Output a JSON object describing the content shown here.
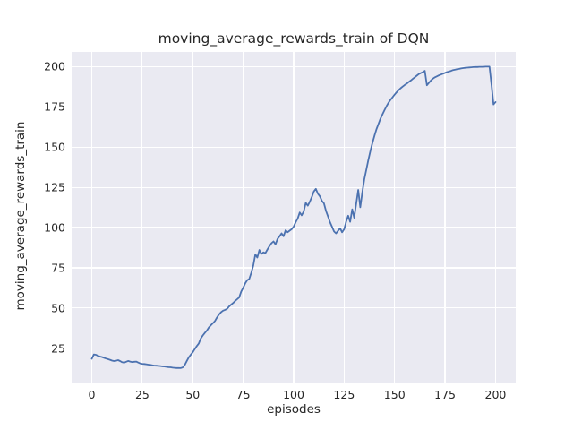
{
  "figure_title": "moving_average_rewards_train of DQN",
  "colors": {
    "figure_bg": "#ffffff",
    "axes_bg": "#eaeaf2",
    "grid": "#ffffff",
    "line": "#4c72b0",
    "text": "#262626"
  },
  "chart_data": {
    "type": "line",
    "title": "moving_average_rewards_train of DQN",
    "xlabel": "episodes",
    "ylabel": "moving_average_rewards_train",
    "xlim": [
      -10,
      210
    ],
    "ylim": [
      3.65,
      209.35
    ],
    "xticks": [
      0,
      25,
      50,
      75,
      100,
      125,
      150,
      175,
      200
    ],
    "yticks": [
      25,
      50,
      75,
      100,
      125,
      150,
      175,
      200
    ],
    "grid": true,
    "legend": false,
    "series": [
      {
        "name": "moving_average_rewards_train",
        "points": [
          [
            0,
            18.5
          ],
          [
            1,
            21.2
          ],
          [
            2,
            21.0
          ],
          [
            3,
            20.4
          ],
          [
            4,
            19.9
          ],
          [
            5,
            19.6
          ],
          [
            6,
            19.1
          ],
          [
            7,
            18.7
          ],
          [
            8,
            18.3
          ],
          [
            9,
            17.9
          ],
          [
            10,
            17.4
          ],
          [
            11,
            17.1
          ],
          [
            12,
            17.3
          ],
          [
            13,
            17.7
          ],
          [
            14,
            17.1
          ],
          [
            15,
            16.4
          ],
          [
            16,
            16.1
          ],
          [
            17,
            16.7
          ],
          [
            18,
            17.2
          ],
          [
            19,
            16.8
          ],
          [
            20,
            16.5
          ],
          [
            21,
            16.7
          ],
          [
            22,
            16.8
          ],
          [
            23,
            16.2
          ],
          [
            24,
            15.6
          ],
          [
            25,
            15.4
          ],
          [
            26,
            15.3
          ],
          [
            27,
            15.1
          ],
          [
            28,
            14.9
          ],
          [
            29,
            14.7
          ],
          [
            30,
            14.5
          ],
          [
            31,
            14.3
          ],
          [
            32,
            14.2
          ],
          [
            33,
            14.1
          ],
          [
            34,
            14.0
          ],
          [
            35,
            13.8
          ],
          [
            36,
            13.7
          ],
          [
            37,
            13.5
          ],
          [
            38,
            13.3
          ],
          [
            39,
            13.2
          ],
          [
            40,
            13.0
          ],
          [
            41,
            12.9
          ],
          [
            42,
            12.8
          ],
          [
            43,
            12.8
          ],
          [
            44,
            12.7
          ],
          [
            45,
            13.1
          ],
          [
            46,
            14.6
          ],
          [
            47,
            17.0
          ],
          [
            48,
            19.4
          ],
          [
            49,
            21.0
          ],
          [
            50,
            22.6
          ],
          [
            51,
            24.5
          ],
          [
            52,
            26.4
          ],
          [
            53,
            28.0
          ],
          [
            54,
            31.2
          ],
          [
            55,
            33.0
          ],
          [
            56,
            34.6
          ],
          [
            57,
            36.1
          ],
          [
            58,
            38.0
          ],
          [
            59,
            39.4
          ],
          [
            60,
            40.6
          ],
          [
            61,
            42.0
          ],
          [
            62,
            44.1
          ],
          [
            63,
            46.0
          ],
          [
            64,
            47.4
          ],
          [
            65,
            48.4
          ],
          [
            66,
            48.9
          ],
          [
            67,
            49.5
          ],
          [
            68,
            51.0
          ],
          [
            69,
            52.1
          ],
          [
            70,
            53.2
          ],
          [
            71,
            54.4
          ],
          [
            72,
            55.5
          ],
          [
            73,
            56.6
          ],
          [
            74,
            60.3
          ],
          [
            75,
            62.6
          ],
          [
            76,
            65.4
          ],
          [
            77,
            67.3
          ],
          [
            78,
            68.1
          ],
          [
            79,
            72.0
          ],
          [
            80,
            76.4
          ],
          [
            81,
            83.4
          ],
          [
            82,
            81.4
          ],
          [
            83,
            86.1
          ],
          [
            84,
            83.6
          ],
          [
            85,
            84.6
          ],
          [
            86,
            84.1
          ],
          [
            87,
            86.4
          ],
          [
            88,
            88.4
          ],
          [
            89,
            90.3
          ],
          [
            90,
            91.4
          ],
          [
            91,
            89.6
          ],
          [
            92,
            93.0
          ],
          [
            93,
            94.6
          ],
          [
            94,
            96.4
          ],
          [
            95,
            94.6
          ],
          [
            96,
            98.4
          ],
          [
            97,
            97.1
          ],
          [
            98,
            98.1
          ],
          [
            99,
            99.0
          ],
          [
            100,
            100.6
          ],
          [
            101,
            103.4
          ],
          [
            102,
            105.6
          ],
          [
            103,
            109.4
          ],
          [
            104,
            107.6
          ],
          [
            105,
            110.1
          ],
          [
            106,
            115.4
          ],
          [
            107,
            113.6
          ],
          [
            108,
            116.1
          ],
          [
            109,
            119.0
          ],
          [
            110,
            122.4
          ],
          [
            111,
            124.1
          ],
          [
            112,
            121.0
          ],
          [
            113,
            119.4
          ],
          [
            114,
            116.6
          ],
          [
            115,
            115.1
          ],
          [
            116,
            110.4
          ],
          [
            117,
            107.0
          ],
          [
            118,
            103.4
          ],
          [
            119,
            100.6
          ],
          [
            120,
            97.6
          ],
          [
            121,
            96.4
          ],
          [
            122,
            98.0
          ],
          [
            123,
            99.6
          ],
          [
            124,
            97.1
          ],
          [
            125,
            99.0
          ],
          [
            126,
            103.6
          ],
          [
            127,
            107.4
          ],
          [
            128,
            103.6
          ],
          [
            129,
            111.4
          ],
          [
            130,
            106.1
          ],
          [
            131,
            115.0
          ],
          [
            132,
            123.4
          ],
          [
            133,
            112.6
          ],
          [
            134,
            122.0
          ],
          [
            135,
            130.0
          ],
          [
            136,
            136.1
          ],
          [
            137,
            142.0
          ],
          [
            138,
            147.6
          ],
          [
            139,
            152.4
          ],
          [
            140,
            157.0
          ],
          [
            141,
            161.0
          ],
          [
            142,
            164.4
          ],
          [
            143,
            167.6
          ],
          [
            144,
            170.4
          ],
          [
            145,
            173.0
          ],
          [
            146,
            175.4
          ],
          [
            147,
            177.6
          ],
          [
            148,
            179.4
          ],
          [
            149,
            181.0
          ],
          [
            150,
            182.6
          ],
          [
            151,
            184.1
          ],
          [
            152,
            185.4
          ],
          [
            153,
            186.6
          ],
          [
            154,
            187.6
          ],
          [
            155,
            188.6
          ],
          [
            156,
            189.4
          ],
          [
            157,
            190.4
          ],
          [
            158,
            191.4
          ],
          [
            159,
            192.4
          ],
          [
            160,
            193.4
          ],
          [
            161,
            194.4
          ],
          [
            162,
            195.4
          ],
          [
            163,
            196.0
          ],
          [
            164,
            196.6
          ],
          [
            165,
            197.4
          ],
          [
            166,
            188.4
          ],
          [
            167,
            190.0
          ],
          [
            168,
            191.4
          ],
          [
            169,
            192.6
          ],
          [
            170,
            193.4
          ],
          [
            171,
            194.0
          ],
          [
            172,
            194.6
          ],
          [
            173,
            195.1
          ],
          [
            174,
            195.6
          ],
          [
            175,
            196.1
          ],
          [
            176,
            196.6
          ],
          [
            177,
            197.0
          ],
          [
            178,
            197.4
          ],
          [
            179,
            197.9
          ],
          [
            180,
            198.1
          ],
          [
            181,
            198.4
          ],
          [
            182,
            198.6
          ],
          [
            183,
            198.9
          ],
          [
            184,
            199.1
          ],
          [
            185,
            199.3
          ],
          [
            186,
            199.4
          ],
          [
            187,
            199.5
          ],
          [
            188,
            199.6
          ],
          [
            189,
            199.7
          ],
          [
            190,
            199.8
          ],
          [
            191,
            199.8
          ],
          [
            192,
            199.9
          ],
          [
            193,
            199.9
          ],
          [
            194,
            199.9
          ],
          [
            195,
            200.0
          ],
          [
            196,
            200.0
          ],
          [
            197,
            200.0
          ],
          [
            198,
            189.0
          ],
          [
            199,
            176.5
          ],
          [
            200,
            178.0
          ]
        ]
      }
    ]
  }
}
